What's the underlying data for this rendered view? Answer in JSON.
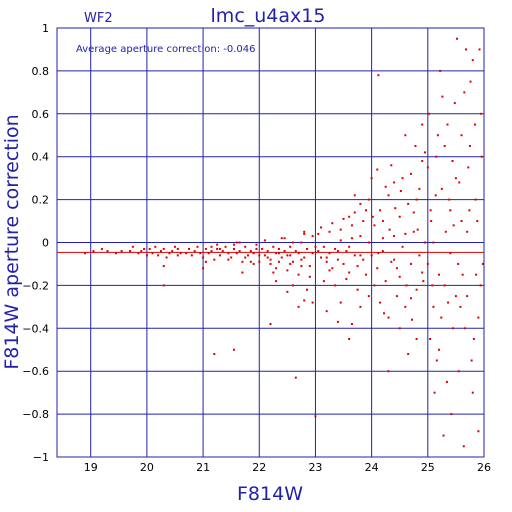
{
  "chart_data": {
    "type": "scatter",
    "title": "lmc_u4ax15",
    "panel_label": "WF2",
    "annotation": "Average aperture correction: -0.046",
    "xlabel": "F814W",
    "ylabel": "F814W aperture correction",
    "xlim": [
      18.4,
      26.0
    ],
    "ylim": [
      -1.0,
      1.0
    ],
    "x_ticks": [
      19,
      20,
      21,
      22,
      23,
      24,
      25,
      26
    ],
    "y_ticks": [
      -1,
      -0.8,
      -0.6,
      -0.4,
      -0.2,
      0,
      0.2,
      0.4,
      0.6,
      0.8,
      1
    ],
    "x_tick_labels": [
      "19",
      "20",
      "21",
      "22",
      "23",
      "24",
      "25",
      "26"
    ],
    "y_tick_labels": [
      "−1",
      "−0.8",
      "−0.6",
      "−0.4",
      "−0.2",
      "0",
      "0.2",
      "0.4",
      "0.6",
      "0.8",
      "1"
    ],
    "grid": true,
    "reference_line": -0.046,
    "colors": {
      "axes": "#2222aa",
      "points": "#dd0000",
      "line": "#dd0000"
    },
    "series": [
      {
        "values": [
          [
            18.9,
            -0.05
          ],
          [
            19.05,
            -0.04
          ],
          [
            19.2,
            -0.03
          ],
          [
            19.3,
            -0.04
          ],
          [
            19.45,
            -0.05
          ],
          [
            19.55,
            -0.04
          ],
          [
            19.7,
            -0.04
          ],
          [
            19.75,
            -0.02
          ],
          [
            19.85,
            -0.05
          ],
          [
            19.9,
            -0.04
          ],
          [
            19.95,
            -0.03
          ],
          [
            20.0,
            -0.06
          ],
          [
            20.05,
            -0.03
          ],
          [
            20.1,
            -0.05
          ],
          [
            20.15,
            -0.02
          ],
          [
            20.2,
            -0.06
          ],
          [
            20.25,
            -0.04
          ],
          [
            20.3,
            -0.03
          ],
          [
            20.35,
            -0.07
          ],
          [
            20.4,
            -0.05
          ],
          [
            20.45,
            -0.04
          ],
          [
            20.5,
            -0.02
          ],
          [
            20.55,
            -0.06
          ],
          [
            20.6,
            -0.05
          ],
          [
            20.3,
            -0.11
          ],
          [
            20.3,
            -0.2
          ],
          [
            20.55,
            -0.03
          ],
          [
            20.7,
            -0.05
          ],
          [
            20.75,
            -0.03
          ],
          [
            20.8,
            -0.06
          ],
          [
            20.85,
            -0.04
          ],
          [
            20.9,
            -0.02
          ],
          [
            20.95,
            -0.05
          ],
          [
            21.0,
            -0.07
          ],
          [
            21.05,
            -0.03
          ],
          [
            21.1,
            -0.05
          ],
          [
            21.15,
            -0.04
          ],
          [
            21.2,
            -0.08
          ],
          [
            21.25,
            -0.03
          ],
          [
            21.3,
            -0.06
          ],
          [
            21.35,
            -0.04
          ],
          [
            21.4,
            -0.02
          ],
          [
            21.45,
            -0.05
          ],
          [
            21.5,
            -0.07
          ],
          [
            21.55,
            -0.03
          ],
          [
            21.6,
            -0.05
          ],
          [
            21.65,
            -0.04
          ],
          [
            21.7,
            -0.09
          ],
          [
            21.75,
            -0.02
          ],
          [
            21.8,
            -0.06
          ],
          [
            21.85,
            -0.04
          ],
          [
            21.9,
            -0.05
          ],
          [
            21.95,
            -0.03
          ],
          [
            22.0,
            -0.06
          ],
          [
            21.15,
            -0.02
          ],
          [
            21.3,
            -0.03
          ],
          [
            21.45,
            -0.08
          ],
          [
            21.55,
            -0.01
          ],
          [
            21.65,
            0.0
          ],
          [
            21.75,
            -0.07
          ],
          [
            21.85,
            -0.09
          ],
          [
            21.95,
            -0.01
          ],
          [
            21.05,
            -0.09
          ],
          [
            21.25,
            -0.01
          ],
          [
            21.0,
            -0.12
          ],
          [
            21.2,
            -0.52
          ],
          [
            21.55,
            -0.5
          ],
          [
            21.7,
            -0.14
          ],
          [
            21.9,
            -0.1
          ],
          [
            21.6,
            0.0
          ],
          [
            22.05,
            -0.03
          ],
          [
            22.1,
            -0.06
          ],
          [
            22.15,
            -0.04
          ],
          [
            22.2,
            -0.08
          ],
          [
            22.25,
            -0.02
          ],
          [
            22.3,
            -0.05
          ],
          [
            22.35,
            -0.03
          ],
          [
            22.4,
            -0.07
          ],
          [
            22.45,
            -0.04
          ],
          [
            22.5,
            -0.06
          ],
          [
            22.55,
            -0.02
          ],
          [
            22.6,
            -0.09
          ],
          [
            22.65,
            -0.04
          ],
          [
            22.7,
            -0.05
          ],
          [
            22.75,
            0.0
          ],
          [
            22.8,
            -0.07
          ],
          [
            22.85,
            -0.03
          ],
          [
            22.9,
            -0.11
          ],
          [
            22.95,
            -0.05
          ],
          [
            23.0,
            -0.02
          ],
          [
            22.1,
            0.01
          ],
          [
            22.2,
            -0.1
          ],
          [
            22.3,
            -0.12
          ],
          [
            22.4,
            0.02
          ],
          [
            22.5,
            -0.13
          ],
          [
            22.6,
            0.0
          ],
          [
            22.7,
            -0.15
          ],
          [
            22.8,
            0.04
          ],
          [
            22.9,
            -0.16
          ],
          [
            22.15,
            -0.07
          ],
          [
            22.35,
            -0.09
          ],
          [
            22.55,
            -0.1
          ],
          [
            22.75,
            -0.11
          ],
          [
            22.95,
            0.03
          ],
          [
            22.2,
            -0.38
          ],
          [
            22.7,
            -0.3
          ],
          [
            22.8,
            -0.27
          ],
          [
            22.5,
            -0.23
          ],
          [
            22.3,
            -0.18
          ],
          [
            22.6,
            -0.2
          ],
          [
            22.8,
            0.05
          ],
          [
            22.85,
            -0.22
          ],
          [
            22.65,
            -0.63
          ],
          [
            22.95,
            -0.28
          ],
          [
            22.45,
            0.02
          ],
          [
            22.25,
            -0.14
          ],
          [
            22.0,
            -0.09
          ],
          [
            22.35,
            -0.05
          ],
          [
            22.55,
            -0.06
          ],
          [
            22.75,
            -0.08
          ],
          [
            23.05,
            -0.04
          ],
          [
            23.1,
            -0.07
          ],
          [
            23.15,
            -0.02
          ],
          [
            23.2,
            -0.09
          ],
          [
            23.25,
            -0.05
          ],
          [
            23.3,
            -0.12
          ],
          [
            23.35,
            -0.03
          ],
          [
            23.4,
            -0.08
          ],
          [
            23.45,
            0.01
          ],
          [
            23.5,
            -0.1
          ],
          [
            23.55,
            -0.04
          ],
          [
            23.6,
            -0.14
          ],
          [
            23.65,
            0.02
          ],
          [
            23.7,
            -0.06
          ],
          [
            23.75,
            -0.11
          ],
          [
            23.8,
            0.03
          ],
          [
            23.85,
            -0.08
          ],
          [
            23.9,
            -0.15
          ],
          [
            23.95,
            0.0
          ],
          [
            23.05,
            0.04
          ],
          [
            23.15,
            -0.18
          ],
          [
            23.25,
            0.05
          ],
          [
            23.35,
            -0.2
          ],
          [
            23.45,
            0.06
          ],
          [
            23.55,
            -0.17
          ],
          [
            23.65,
            0.08
          ],
          [
            23.75,
            -0.22
          ],
          [
            23.85,
            0.1
          ],
          [
            23.95,
            -0.25
          ],
          [
            23.2,
            -0.32
          ],
          [
            23.4,
            -0.37
          ],
          [
            23.6,
            0.12
          ],
          [
            23.8,
            -0.3
          ],
          [
            23.1,
            0.07
          ],
          [
            23.3,
            0.09
          ],
          [
            23.5,
            0.11
          ],
          [
            23.7,
            0.14
          ],
          [
            23.9,
            0.15
          ],
          [
            23.6,
            -0.45
          ],
          [
            23.45,
            -0.28
          ],
          [
            23.8,
            0.18
          ],
          [
            23.7,
            0.22
          ],
          [
            23.65,
            -0.38
          ],
          [
            23.95,
            0.2
          ],
          [
            23.2,
            -0.07
          ],
          [
            23.4,
            -0.04
          ],
          [
            23.6,
            -0.02
          ],
          [
            23.8,
            -0.06
          ],
          [
            23.0,
            -0.81
          ],
          [
            23.25,
            -0.13
          ],
          [
            24.0,
            -0.06
          ],
          [
            24.05,
            0.08
          ],
          [
            24.1,
            -0.12
          ],
          [
            24.15,
            0.15
          ],
          [
            24.2,
            -0.04
          ],
          [
            24.25,
            -0.18
          ],
          [
            24.3,
            0.22
          ],
          [
            24.35,
            -0.09
          ],
          [
            24.4,
            0.03
          ],
          [
            24.45,
            -0.25
          ],
          [
            24.5,
            0.12
          ],
          [
            24.55,
            -0.02
          ],
          [
            24.6,
            -0.3
          ],
          [
            24.65,
            0.18
          ],
          [
            24.7,
            -0.1
          ],
          [
            24.75,
            0.05
          ],
          [
            24.8,
            -0.22
          ],
          [
            24.85,
            0.25
          ],
          [
            24.9,
            -0.14
          ],
          [
            24.95,
            0.0
          ],
          [
            24.0,
            0.3
          ],
          [
            24.1,
            0.34
          ],
          [
            24.2,
            0.1
          ],
          [
            24.3,
            -0.35
          ],
          [
            24.4,
            0.28
          ],
          [
            24.5,
            -0.4
          ],
          [
            24.6,
            0.04
          ],
          [
            24.7,
            0.32
          ],
          [
            24.8,
            -0.45
          ],
          [
            24.9,
            0.38
          ],
          [
            24.05,
            -0.2
          ],
          [
            24.15,
            -0.28
          ],
          [
            24.25,
            0.26
          ],
          [
            24.35,
            0.36
          ],
          [
            24.45,
            -0.12
          ],
          [
            24.55,
            0.3
          ],
          [
            24.65,
            -0.52
          ],
          [
            24.75,
            0.14
          ],
          [
            24.85,
            -0.06
          ],
          [
            24.95,
            0.42
          ],
          [
            24.12,
            0.78
          ],
          [
            24.3,
            -0.6
          ],
          [
            24.6,
            0.5
          ],
          [
            24.78,
            0.45
          ],
          [
            24.9,
            0.55
          ],
          [
            24.5,
            -0.16
          ],
          [
            24.2,
            0.02
          ],
          [
            24.4,
            -0.08
          ],
          [
            24.7,
            -0.26
          ],
          [
            24.8,
            0.2
          ],
          [
            24.02,
            0.12
          ],
          [
            24.22,
            -0.33
          ],
          [
            24.42,
            0.16
          ],
          [
            24.62,
            -0.2
          ],
          [
            24.82,
            0.06
          ],
          [
            24.32,
            0.06
          ],
          [
            24.52,
            0.24
          ],
          [
            24.72,
            -0.36
          ],
          [
            24.92,
            -0.18
          ],
          [
            24.12,
            -0.05
          ],
          [
            25.0,
            -0.1
          ],
          [
            25.05,
            0.15
          ],
          [
            25.1,
            -0.3
          ],
          [
            25.15,
            0.4
          ],
          [
            25.2,
            -0.5
          ],
          [
            25.25,
            0.25
          ],
          [
            25.3,
            -0.2
          ],
          [
            25.35,
            0.55
          ],
          [
            25.4,
            -0.05
          ],
          [
            25.45,
            -0.4
          ],
          [
            25.5,
            0.3
          ],
          [
            25.55,
            -0.6
          ],
          [
            25.6,
            0.1
          ],
          [
            25.65,
            0.7
          ],
          [
            25.7,
            -0.25
          ],
          [
            25.75,
            0.45
          ],
          [
            25.8,
            -0.7
          ],
          [
            25.85,
            0.2
          ],
          [
            25.9,
            -0.35
          ],
          [
            25.95,
            0.6
          ],
          [
            25.02,
            0.6
          ],
          [
            25.12,
            -0.7
          ],
          [
            25.22,
            0.8
          ],
          [
            25.32,
            0.05
          ],
          [
            25.42,
            -0.8
          ],
          [
            25.52,
            0.95
          ],
          [
            25.62,
            -0.15
          ],
          [
            25.72,
            0.35
          ],
          [
            25.82,
            -0.45
          ],
          [
            25.92,
            0.9
          ],
          [
            25.08,
            -0.2
          ],
          [
            25.18,
            0.5
          ],
          [
            25.28,
            -0.9
          ],
          [
            25.38,
            0.2
          ],
          [
            25.48,
            0.65
          ],
          [
            25.58,
            -0.3
          ],
          [
            25.68,
            0.9
          ],
          [
            25.78,
            -0.55
          ],
          [
            25.88,
            0.1
          ],
          [
            25.98,
            -0.1
          ],
          [
            25.0,
            0.35
          ],
          [
            25.1,
            0.0
          ],
          [
            25.2,
            -0.15
          ],
          [
            25.3,
            0.45
          ],
          [
            25.4,
            0.15
          ],
          [
            25.5,
            -0.25
          ],
          [
            25.6,
            0.5
          ],
          [
            25.7,
            0.05
          ],
          [
            25.8,
            0.85
          ],
          [
            25.9,
            -0.88
          ],
          [
            25.04,
            -0.45
          ],
          [
            25.14,
            0.22
          ],
          [
            25.24,
            -0.35
          ],
          [
            25.34,
            -0.65
          ],
          [
            25.44,
            0.38
          ],
          [
            25.54,
            -0.1
          ],
          [
            25.64,
            -0.95
          ],
          [
            25.74,
            0.15
          ],
          [
            25.84,
            0.55
          ],
          [
            25.94,
            -0.2
          ],
          [
            25.06,
            0.1
          ],
          [
            25.16,
            -0.55
          ],
          [
            25.26,
            0.68
          ],
          [
            25.36,
            -0.28
          ],
          [
            25.46,
            0.08
          ],
          [
            25.56,
            0.28
          ],
          [
            25.66,
            -0.4
          ],
          [
            25.76,
            0.75
          ],
          [
            25.86,
            -0.15
          ],
          [
            25.96,
            0.4
          ]
        ]
      }
    ]
  }
}
